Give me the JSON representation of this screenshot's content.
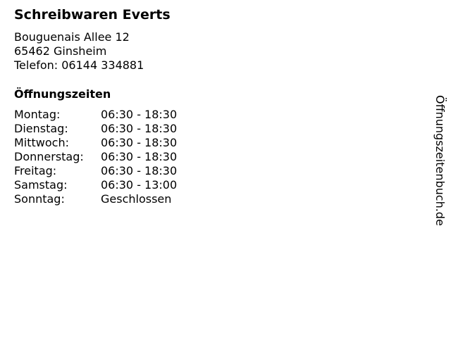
{
  "business": {
    "name": "Schreibwaren Everts",
    "street": "Bouguenais Allee 12",
    "city": "65462 Ginsheim",
    "phone": "Telefon: 06144 334881"
  },
  "hours_heading": "Öffnungszeiten",
  "hours": [
    {
      "day": "Montag:",
      "time": "06:30 - 18:30"
    },
    {
      "day": "Dienstag:",
      "time": "06:30 - 18:30"
    },
    {
      "day": "Mittwoch:",
      "time": "06:30 - 18:30"
    },
    {
      "day": "Donnerstag:",
      "time": "06:30 - 18:30"
    },
    {
      "day": "Freitag:",
      "time": "06:30 - 18:30"
    },
    {
      "day": "Samstag:",
      "time": "06:30 - 13:00"
    },
    {
      "day": "Sonntag:",
      "time": "Geschlossen"
    }
  ],
  "watermark": "Öffnungszeitenbuch.de"
}
